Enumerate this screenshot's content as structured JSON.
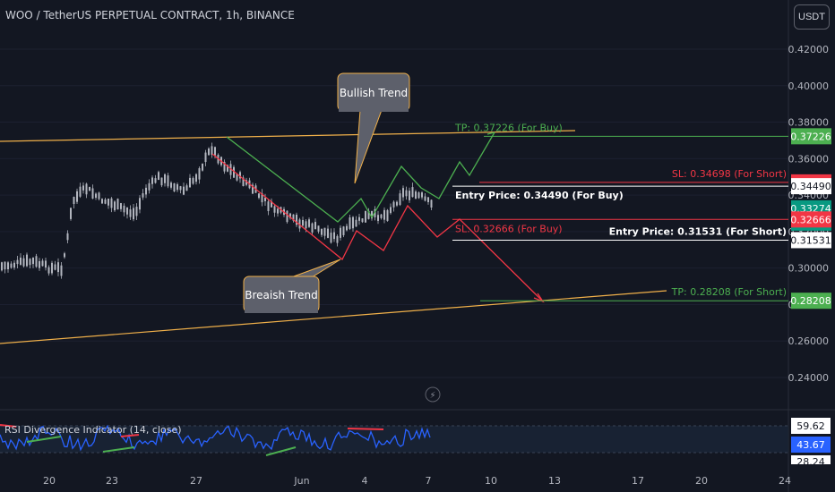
{
  "header": {
    "title": "WOO / TetherUS PERPETUAL CONTRACT, 1h, BINANCE",
    "currency": "USDT"
  },
  "colors": {
    "background": "#131722",
    "candle": "#b2b5be",
    "rsi_line": "#2962ff",
    "bullish": "#4caf50",
    "bearish": "#f23645",
    "channel": "#f0b04a",
    "price_label": "#089981"
  },
  "chart_data": {
    "type": "candlestick",
    "y_axis": {
      "ticks": [
        "0.42000",
        "0.40000",
        "0.38000",
        "0.36000",
        "0.34000",
        "0.32000",
        "0.30000",
        "0.28000",
        "0.26000",
        "0.24000"
      ],
      "range": [
        0.232,
        0.428
      ]
    },
    "x_axis": {
      "ticks": [
        "20",
        "23",
        "27",
        "Jun",
        "4",
        "7",
        "10",
        "13",
        "17",
        "20",
        "24"
      ]
    },
    "price_labels": [
      {
        "text": "0.37226",
        "value": 0.37226,
        "style": "green"
      },
      {
        "text": "0.34698",
        "value": 0.34698,
        "style": "red"
      },
      {
        "text": "0.34490",
        "value": 0.3449,
        "style": "white"
      },
      {
        "text": "0.33274",
        "value": 0.33274,
        "style": "current"
      },
      {
        "text": "10:14",
        "value": 0.3308,
        "style": "timer"
      },
      {
        "text": "0.32666",
        "value": 0.32666,
        "style": "red"
      },
      {
        "text": "0.31531",
        "value": 0.31531,
        "style": "white"
      },
      {
        "text": "0.28208",
        "value": 0.28208,
        "style": "green"
      }
    ],
    "levels": [
      {
        "label": "TP: 0.37226 (For Buy)",
        "value": 0.37226,
        "color": "green",
        "align": "left"
      },
      {
        "label": "SL: 0.34698 (For Short)",
        "value": 0.34698,
        "color": "red",
        "align": "right"
      },
      {
        "label": "Entry Price: 0.34490 (For Buy)",
        "value": 0.3449,
        "color": "white",
        "align": "left"
      },
      {
        "label": "SL: 0.32666 (For Buy)",
        "value": 0.32666,
        "color": "red",
        "align": "left"
      },
      {
        "label": "Entry Price: 0.31531 (For Short)",
        "value": 0.31531,
        "color": "white",
        "align": "right"
      },
      {
        "label": "TP: 0.28208 (For Short)",
        "value": 0.28208,
        "color": "green",
        "align": "right"
      }
    ],
    "annotations": [
      "Bullish Trend",
      "Breaish Trend"
    ],
    "indicator": {
      "label": "RSI Divergence Indicator (14, close)",
      "values_shown": [
        "59.62",
        "43.67",
        "28.24"
      ]
    }
  }
}
